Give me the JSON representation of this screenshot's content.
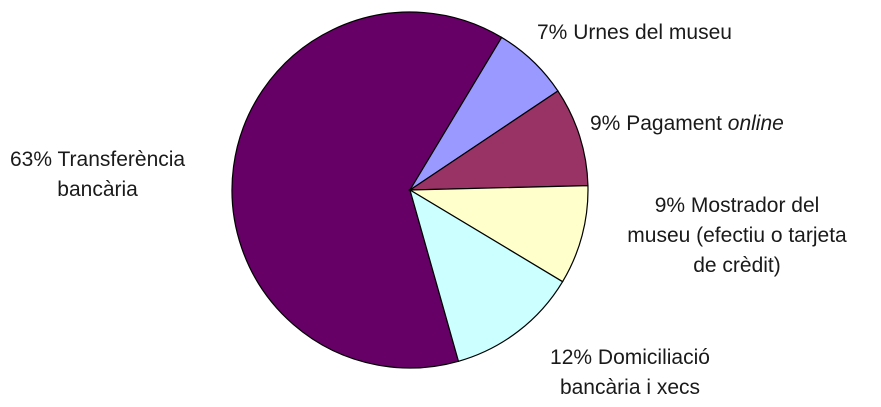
{
  "chart_data": {
    "type": "pie",
    "slices": [
      {
        "name": "Transferència bancària",
        "value": 63,
        "color": "#660066"
      },
      {
        "name": "Urnes del museu",
        "value": 7,
        "color": "#9999ff"
      },
      {
        "name": "Pagament online",
        "value": 9,
        "color": "#993366"
      },
      {
        "name": "Mostrador del museu (efectiu o tarjeta de crèdit)",
        "value": 9,
        "color": "#ffffcc"
      },
      {
        "name": "Domiciliació bancària i xecs",
        "value": 12,
        "color": "#ccffff"
      }
    ]
  },
  "labels": {
    "transferencia": {
      "pct": "63%",
      "line1": "Transferència",
      "line2": "bancària"
    },
    "urnes": {
      "pct": "7%",
      "text": "Urnes del museu"
    },
    "pagament": {
      "pct": "9%",
      "text": "Pagament",
      "italic": "online"
    },
    "mostrador": {
      "pct": "9%",
      "line1": "Mostrador del",
      "line2": "museu (efectiu o tarjeta",
      "line3": "de crèdit)"
    },
    "domiciliacio": {
      "pct": "12%",
      "line1": "Domiciliació",
      "line2": "bancària i xecs"
    }
  }
}
